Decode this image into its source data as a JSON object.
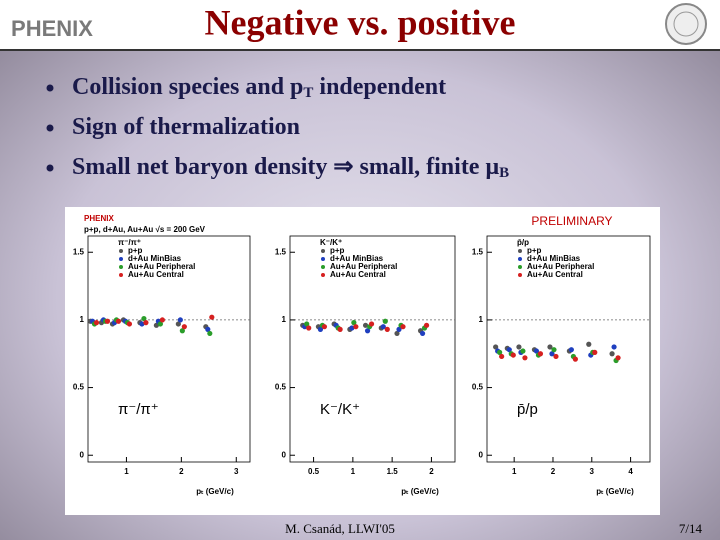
{
  "slide": {
    "logo": "PHENIX",
    "title": "Negative vs. positive",
    "bullets": [
      {
        "text": "Collision species and p",
        "sub": "T",
        "tail": " independent"
      },
      {
        "text": "Sign of thermalization"
      },
      {
        "text": "Small net baryon density ⇒ small, finite μ",
        "sub": "B"
      }
    ],
    "footer": "M. Csanád, LLWI'05",
    "page": "7/14"
  },
  "chart_data": [
    {
      "type": "scatter",
      "header": "PHENIX",
      "subheader": "p+p, d+Au, Au+Au  √s = 200 GeV",
      "legend_title": "π⁻/π⁺",
      "label": "π⁻/π⁺",
      "xlabel": "pₜ (GeV/c)",
      "xlim": [
        0.3,
        3.25
      ],
      "xticks": [
        1,
        2,
        3
      ],
      "ylim": [
        -0.05,
        1.62
      ],
      "yticks": [
        0,
        0.5,
        1,
        1.5
      ],
      "hline": 1,
      "x": [
        0.4,
        0.6,
        0.8,
        1.0,
        1.3,
        1.6,
        2.0,
        2.5
      ],
      "series": [
        {
          "name": "p+p",
          "color": "#555555",
          "values": [
            0.99,
            0.98,
            0.97,
            1.0,
            0.98,
            0.96,
            0.97,
            0.95
          ]
        },
        {
          "name": "d+Au MinBias",
          "color": "#1f3fbf",
          "values": [
            0.99,
            1.0,
            0.98,
            0.99,
            0.97,
            0.99,
            1.0,
            0.93
          ]
        },
        {
          "name": "Au+Au Peripheral",
          "color": "#2a9d2a",
          "values": [
            0.97,
            0.99,
            1.0,
            0.98,
            1.01,
            0.97,
            0.92,
            0.9
          ]
        },
        {
          "name": "Au+Au Central",
          "color": "#d62020",
          "values": [
            0.98,
            0.99,
            0.99,
            0.97,
            0.98,
            1.0,
            0.95,
            1.02
          ]
        }
      ]
    },
    {
      "type": "scatter",
      "legend_title": "K⁻/K⁺",
      "label": "K⁻/K⁺",
      "xlabel": "pₜ (GeV/c)",
      "xlim": [
        0.2,
        2.3
      ],
      "xticks": [
        0.5,
        1,
        1.5,
        2
      ],
      "ylim": [
        -0.05,
        1.62
      ],
      "yticks": [
        0,
        0.5,
        1,
        1.5
      ],
      "hline": 1,
      "x": [
        0.4,
        0.6,
        0.8,
        1.0,
        1.2,
        1.4,
        1.6,
        1.9
      ],
      "series": [
        {
          "name": "p+p",
          "color": "#555555",
          "values": [
            0.96,
            0.95,
            0.97,
            0.93,
            0.96,
            0.94,
            0.9,
            0.92
          ]
        },
        {
          "name": "d+Au MinBias",
          "color": "#1f3fbf",
          "values": [
            0.95,
            0.93,
            0.96,
            0.94,
            0.92,
            0.95,
            0.93,
            0.9
          ]
        },
        {
          "name": "Au+Au Peripheral",
          "color": "#2a9d2a",
          "values": [
            0.97,
            0.96,
            0.94,
            0.98,
            0.95,
            0.99,
            0.96,
            0.94
          ]
        },
        {
          "name": "Au+Au Central",
          "color": "#d62020",
          "values": [
            0.94,
            0.95,
            0.93,
            0.95,
            0.97,
            0.93,
            0.95,
            0.96
          ]
        }
      ]
    },
    {
      "type": "scatter",
      "legend_title": "p̄/p",
      "label": "p̄/p",
      "annotation": "PRELIMINARY",
      "xlabel": "pₜ (GeV/c)",
      "xlim": [
        0.3,
        4.5
      ],
      "xticks": [
        1,
        2,
        3,
        4
      ],
      "ylim": [
        -0.05,
        1.62
      ],
      "yticks": [
        0,
        0.5,
        1,
        1.5
      ],
      "hline": 1,
      "x": [
        0.6,
        0.9,
        1.2,
        1.6,
        2.0,
        2.5,
        3.0,
        3.6
      ],
      "series": [
        {
          "name": "p+p",
          "color": "#555555",
          "values": [
            0.8,
            0.79,
            0.8,
            0.78,
            0.8,
            0.77,
            0.82,
            0.75
          ]
        },
        {
          "name": "d+Au MinBias",
          "color": "#1f3fbf",
          "values": [
            0.77,
            0.78,
            0.76,
            0.77,
            0.75,
            0.78,
            0.74,
            0.8
          ]
        },
        {
          "name": "Au+Au Peripheral",
          "color": "#2a9d2a",
          "values": [
            0.76,
            0.75,
            0.77,
            0.74,
            0.78,
            0.73,
            0.76,
            0.7
          ]
        },
        {
          "name": "Au+Au Central",
          "color": "#d62020",
          "values": [
            0.73,
            0.74,
            0.72,
            0.75,
            0.73,
            0.71,
            0.76,
            0.72
          ]
        }
      ]
    }
  ]
}
